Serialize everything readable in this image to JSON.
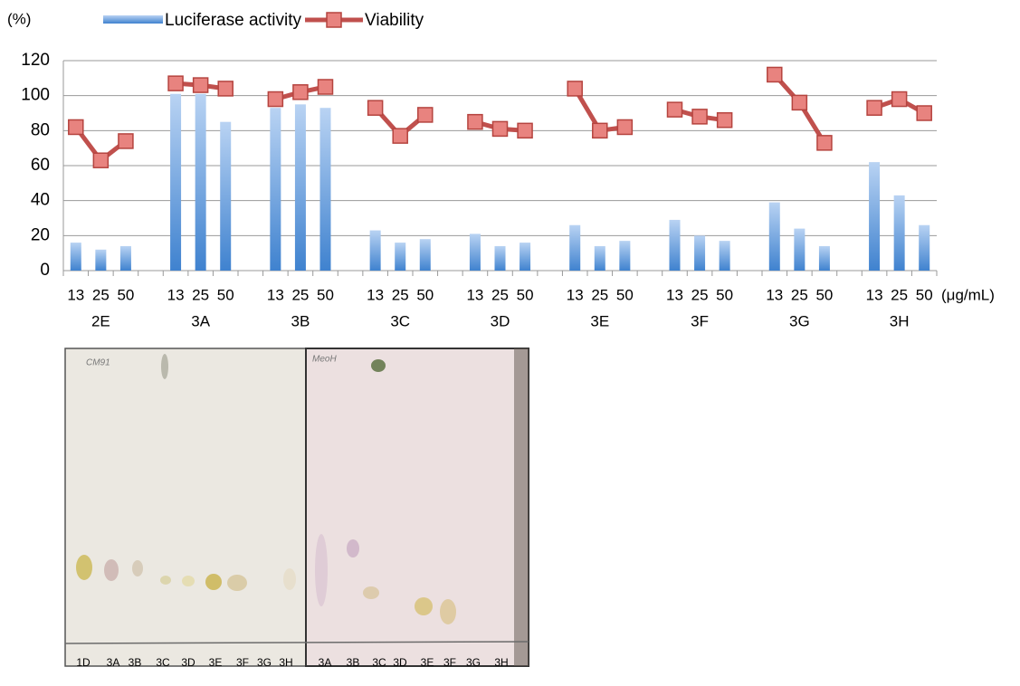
{
  "chart_data": {
    "type": "combo",
    "y_label": "(%)",
    "x_unit": "(μg/mL)",
    "categories": [
      "13",
      "25",
      "50",
      null,
      "13",
      "25",
      "50",
      null,
      "13",
      "25",
      "50",
      null,
      "13",
      "25",
      "50",
      null,
      "13",
      "25",
      "50",
      null,
      "13",
      "25",
      "50",
      null,
      "13",
      "25",
      "50",
      null,
      "13",
      "25",
      "50",
      null,
      "13",
      "25",
      "50"
    ],
    "groups": [
      "2E",
      "3A",
      "3B",
      "3C",
      "3D",
      "3E",
      "3F",
      "3G",
      "3H"
    ],
    "series": [
      {
        "name": "Luciferase activity",
        "type": "bar",
        "color": "#4f8fd6",
        "values": [
          16,
          12,
          14,
          null,
          101,
          101,
          85,
          null,
          93,
          95,
          93,
          null,
          23,
          16,
          18,
          null,
          21,
          14,
          16,
          null,
          26,
          14,
          17,
          null,
          29,
          20,
          17,
          null,
          39,
          24,
          14,
          null,
          62,
          43,
          26
        ]
      },
      {
        "name": "Viability",
        "type": "line",
        "color": "#c0504d",
        "values": [
          82,
          63,
          74,
          null,
          107,
          106,
          104,
          null,
          98,
          102,
          105,
          null,
          93,
          77,
          89,
          null,
          85,
          81,
          80,
          null,
          104,
          80,
          82,
          null,
          92,
          88,
          86,
          null,
          112,
          96,
          73,
          null,
          93,
          98,
          90
        ]
      }
    ],
    "ylim": [
      0,
      120
    ],
    "yticks": [
      0,
      20,
      40,
      60,
      80,
      100,
      120
    ],
    "grid": true
  },
  "tlc": {
    "plates": [
      {
        "note": "CM91",
        "lanes": [
          "1D",
          "3A",
          "3B",
          "3C",
          "3D",
          "3E",
          "3F",
          "3G",
          "3H"
        ]
      },
      {
        "note": "MeoH",
        "lanes": [
          "3A",
          "3B",
          "3C",
          "3D",
          "3E",
          "3F",
          "3G",
          "3H"
        ]
      }
    ]
  }
}
